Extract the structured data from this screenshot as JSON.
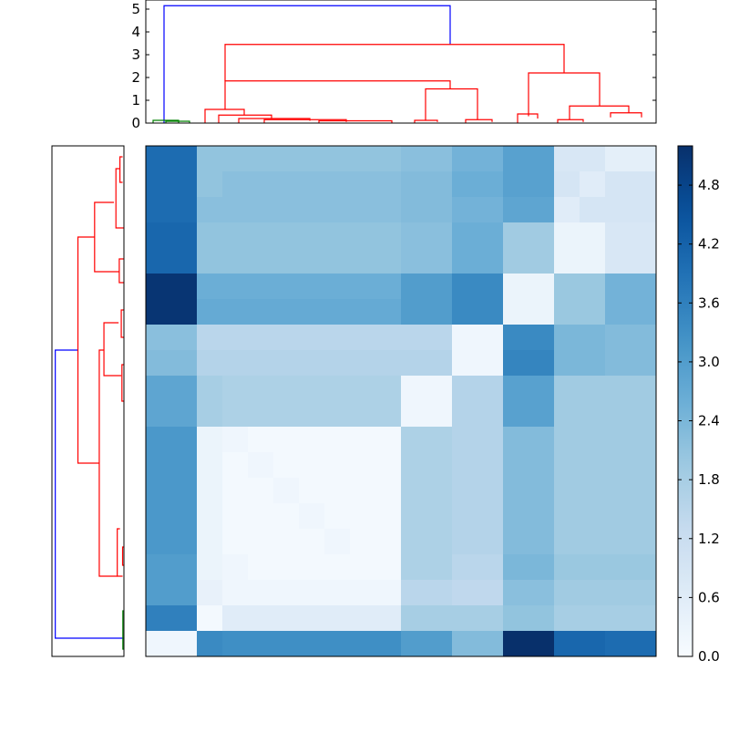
{
  "chart_data": [
    {
      "type": "dendrogram",
      "orientation": "top",
      "ylim": [
        0,
        5.4
      ],
      "yticks": [
        "0",
        "1",
        "2",
        "3",
        "4",
        "5"
      ],
      "link_colors": {
        "root": "#0000ff",
        "cluster_a": "#008000",
        "cluster_b": "#ff0000"
      },
      "merges": [
        {
          "label": "root",
          "height": 5.15,
          "color": "#0000ff"
        },
        {
          "label": "main-red",
          "height": 3.45,
          "color": "#ff0000"
        },
        {
          "label": "left-red",
          "height": 1.85,
          "color": "#ff0000"
        },
        {
          "label": "right-red",
          "height": 2.2,
          "color": "#ff0000"
        },
        {
          "label": "mid-red",
          "height": 1.5,
          "color": "#ff0000"
        },
        {
          "label": "right-right",
          "height": 0.75,
          "color": "#ff0000"
        },
        {
          "label": "left-left",
          "height": 0.6,
          "color": "#ff0000"
        },
        {
          "label": "green",
          "height": 0.1,
          "color": "#008000"
        }
      ]
    },
    {
      "type": "dendrogram",
      "orientation": "left"
    },
    {
      "type": "heatmap",
      "rows": 20,
      "cols": 20,
      "colormap": "Blues",
      "vmin": 0.0,
      "vmax": 5.2,
      "colorbar_ticks": [
        "0.0",
        "0.6",
        "1.2",
        "1.8",
        "2.4",
        "3.0",
        "3.6",
        "4.2",
        "4.8"
      ],
      "colorbar_tick_values": [
        0.0,
        0.6,
        1.2,
        1.8,
        2.4,
        3.0,
        3.6,
        4.2,
        4.8
      ],
      "values": [
        [
          4.0,
          4.0,
          2.1,
          2.1,
          2.1,
          2.1,
          2.1,
          2.1,
          2.1,
          2.1,
          2.2,
          2.2,
          2.5,
          2.5,
          2.9,
          2.9,
          0.8,
          0.8,
          0.5,
          0.5
        ],
        [
          4.0,
          4.0,
          2.1,
          2.2,
          2.2,
          2.2,
          2.2,
          2.2,
          2.2,
          2.2,
          2.3,
          2.3,
          2.6,
          2.6,
          2.9,
          2.9,
          0.9,
          0.6,
          0.9,
          0.9
        ],
        [
          4.0,
          4.0,
          2.2,
          2.2,
          2.2,
          2.2,
          2.2,
          2.2,
          2.2,
          2.2,
          2.3,
          2.3,
          2.5,
          2.5,
          2.8,
          2.8,
          0.6,
          0.9,
          0.9,
          0.9
        ],
        [
          4.1,
          4.1,
          2.1,
          2.1,
          2.1,
          2.1,
          2.1,
          2.1,
          2.1,
          2.1,
          2.2,
          2.2,
          2.6,
          2.6,
          1.9,
          1.9,
          0.3,
          0.3,
          0.8,
          0.8
        ],
        [
          4.1,
          4.1,
          2.1,
          2.1,
          2.1,
          2.1,
          2.1,
          2.1,
          2.1,
          2.1,
          2.2,
          2.2,
          2.6,
          2.6,
          1.9,
          1.9,
          0.3,
          0.3,
          0.8,
          0.8
        ],
        [
          5.1,
          5.1,
          2.6,
          2.6,
          2.6,
          2.6,
          2.6,
          2.6,
          2.6,
          2.6,
          3.0,
          3.0,
          3.4,
          3.4,
          0.3,
          0.3,
          2.0,
          2.0,
          2.5,
          2.5
        ],
        [
          5.1,
          5.1,
          2.7,
          2.7,
          2.7,
          2.7,
          2.7,
          2.7,
          2.7,
          2.7,
          3.0,
          3.0,
          3.4,
          3.4,
          0.3,
          0.3,
          2.0,
          2.0,
          2.5,
          2.5
        ],
        [
          2.2,
          2.2,
          1.5,
          1.5,
          1.5,
          1.5,
          1.5,
          1.5,
          1.5,
          1.5,
          1.5,
          1.5,
          0.2,
          0.2,
          3.4,
          3.4,
          2.4,
          2.4,
          2.3,
          2.3
        ],
        [
          2.3,
          2.3,
          1.6,
          1.6,
          1.6,
          1.6,
          1.6,
          1.6,
          1.6,
          1.6,
          1.6,
          1.6,
          0.2,
          0.2,
          3.5,
          3.5,
          2.4,
          2.4,
          2.3,
          2.3
        ],
        [
          2.8,
          2.8,
          1.8,
          1.7,
          1.7,
          1.7,
          1.7,
          1.7,
          1.7,
          1.7,
          0.2,
          0.2,
          1.6,
          1.6,
          2.9,
          2.9,
          1.9,
          1.9,
          1.9,
          1.9
        ],
        [
          2.8,
          2.8,
          1.8,
          1.7,
          1.7,
          1.7,
          1.7,
          1.7,
          1.7,
          1.7,
          0.2,
          0.2,
          1.6,
          1.6,
          2.9,
          2.9,
          1.9,
          1.9,
          1.9,
          1.9
        ],
        [
          3.1,
          3.1,
          0.3,
          0.2,
          0.1,
          0.1,
          0.1,
          0.1,
          0.1,
          0.1,
          1.7,
          1.7,
          1.6,
          1.6,
          2.3,
          2.3,
          1.9,
          1.9,
          1.9,
          1.9
        ],
        [
          3.1,
          3.1,
          0.3,
          0.1,
          0.2,
          0.1,
          0.1,
          0.1,
          0.1,
          0.1,
          1.7,
          1.7,
          1.6,
          1.6,
          2.3,
          2.3,
          1.9,
          1.9,
          1.9,
          1.9
        ],
        [
          3.1,
          3.1,
          0.3,
          0.1,
          0.1,
          0.2,
          0.1,
          0.1,
          0.1,
          0.1,
          1.7,
          1.7,
          1.6,
          1.6,
          2.3,
          2.3,
          1.9,
          1.9,
          1.9,
          1.9
        ],
        [
          3.1,
          3.1,
          0.3,
          0.1,
          0.1,
          0.1,
          0.2,
          0.1,
          0.1,
          0.1,
          1.7,
          1.7,
          1.6,
          1.6,
          2.3,
          2.3,
          1.9,
          1.9,
          1.9,
          1.9
        ],
        [
          3.1,
          3.1,
          0.3,
          0.1,
          0.1,
          0.1,
          0.1,
          0.2,
          0.1,
          0.1,
          1.7,
          1.7,
          1.6,
          1.6,
          2.3,
          2.3,
          1.9,
          1.9,
          1.9,
          1.9
        ],
        [
          3.0,
          3.0,
          0.3,
          0.2,
          0.1,
          0.1,
          0.1,
          0.1,
          0.1,
          0.1,
          1.7,
          1.7,
          1.5,
          1.5,
          2.4,
          2.4,
          2.0,
          2.0,
          2.0,
          2.0
        ],
        [
          3.0,
          3.0,
          0.4,
          0.2,
          0.2,
          0.2,
          0.2,
          0.2,
          0.2,
          0.2,
          1.5,
          1.5,
          1.4,
          1.4,
          2.2,
          2.2,
          1.9,
          1.9,
          1.9,
          1.9
        ],
        [
          3.6,
          3.6,
          0.1,
          0.6,
          0.6,
          0.6,
          0.6,
          0.6,
          0.6,
          0.6,
          1.8,
          1.8,
          1.8,
          1.8,
          2.1,
          2.1,
          1.8,
          1.8,
          1.8,
          1.8
        ],
        [
          0.2,
          0.2,
          3.4,
          3.3,
          3.3,
          3.3,
          3.3,
          3.3,
          3.3,
          3.3,
          3.0,
          3.0,
          2.3,
          2.3,
          5.2,
          5.2,
          4.1,
          4.1,
          4.0,
          4.0
        ]
      ]
    }
  ]
}
